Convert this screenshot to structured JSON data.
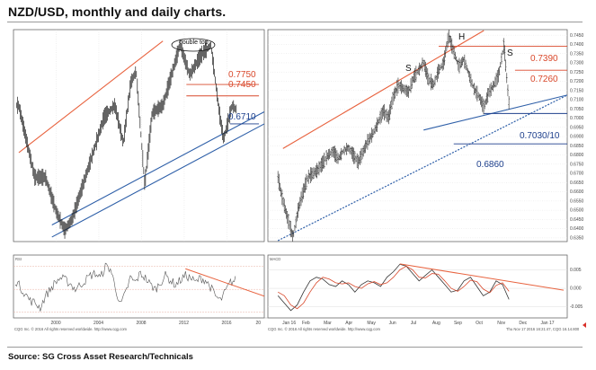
{
  "title": "NZD/USD, monthly and daily charts.",
  "source": "Source: SG Cross Asset Research/Technicals",
  "colors": {
    "resistance": "#e8633f",
    "support": "#2e5fa8",
    "price": "#222222",
    "level_red": "#d9482b",
    "level_blue": "#1d3f8c"
  },
  "chart_data": [
    {
      "type": "line",
      "panel": "monthly",
      "x_ticks": [
        "2000",
        "2004",
        "2008",
        "2012",
        "2016",
        "20"
      ],
      "annotations": {
        "pattern": "double top",
        "levels_red": [
          "0.7750",
          "0.7450"
        ],
        "levels_blue": [
          "0.6710"
        ]
      },
      "x": [
        1996.5,
        1998,
        1999,
        2000,
        2000.8,
        2001.5,
        2002.5,
        2003.5,
        2004.5,
        2005.5,
        2006.3,
        2007,
        2007.5,
        2008.3,
        2009,
        2010,
        2011,
        2011.6,
        2012.5,
        2013.5,
        2014.5,
        2015.3,
        2015.7,
        2016.5,
        2016.8
      ],
      "values": [
        0.72,
        0.53,
        0.53,
        0.44,
        0.39,
        0.42,
        0.51,
        0.6,
        0.69,
        0.72,
        0.62,
        0.78,
        0.81,
        0.51,
        0.7,
        0.72,
        0.82,
        0.88,
        0.8,
        0.85,
        0.88,
        0.7,
        0.63,
        0.72,
        0.71
      ],
      "ylim": [
        0.36,
        0.92
      ],
      "xlim": [
        1996,
        2019.5
      ],
      "footer": "CQG Inc. © 2016 All rights reserved worldwide. http://www.cqg.com"
    },
    {
      "type": "line",
      "panel": "daily",
      "x_ticks": [
        "Jan 16",
        "Feb",
        "Mar",
        "Apr",
        "May",
        "Jun",
        "Jul",
        "Aug",
        "Sep",
        "Oct",
        "Nov",
        "Dec",
        "Jan 17"
      ],
      "y_ticks": [
        0.745,
        0.74,
        0.735,
        0.73,
        0.725,
        0.72,
        0.715,
        0.71,
        0.705,
        0.7,
        0.695,
        0.69,
        0.685,
        0.68,
        0.675,
        0.67,
        0.665,
        0.66,
        0.655,
        0.65,
        0.645,
        0.64,
        0.635
      ],
      "annotations": {
        "pattern_labels": [
          "S",
          "H",
          "S"
        ],
        "levels_red": [
          "0.7390",
          "0.7260"
        ],
        "levels_blue": [
          "0.7030/10",
          "0.6860"
        ]
      },
      "x": [
        0,
        5,
        10,
        15,
        20,
        25,
        30,
        35,
        40,
        45,
        50,
        55,
        60,
        65,
        70,
        75,
        80,
        85,
        90,
        95,
        100,
        105,
        110,
        115,
        120,
        125,
        130,
        135,
        140,
        145,
        150,
        155,
        160,
        165,
        170,
        175,
        180,
        185,
        190,
        195,
        200,
        205,
        210,
        215,
        220,
        225,
        230
      ],
      "values": [
        0.668,
        0.655,
        0.645,
        0.635,
        0.65,
        0.66,
        0.668,
        0.67,
        0.672,
        0.676,
        0.68,
        0.682,
        0.678,
        0.682,
        0.684,
        0.68,
        0.676,
        0.682,
        0.688,
        0.692,
        0.698,
        0.704,
        0.7,
        0.712,
        0.718,
        0.716,
        0.714,
        0.722,
        0.726,
        0.73,
        0.721,
        0.718,
        0.726,
        0.73,
        0.745,
        0.736,
        0.728,
        0.732,
        0.724,
        0.716,
        0.712,
        0.706,
        0.714,
        0.718,
        0.724,
        0.74,
        0.708
      ],
      "ylim": [
        0.633,
        0.748
      ],
      "xlim": [
        -10,
        288
      ],
      "footer": "CQG Inc. © 2016 All rights reserved worldwide. http://www.cqg.com",
      "timestamp": "Thu Nov 17 2016 16:21:47, CQG 16.14.800"
    },
    {
      "type": "line",
      "panel": "monthly_rsi",
      "label": "RSI",
      "values": [
        58,
        52,
        46,
        40,
        38,
        34,
        44,
        50,
        56,
        60,
        58,
        55,
        50,
        54,
        58,
        62,
        64,
        60,
        70,
        68,
        52,
        36,
        46,
        60,
        56,
        64,
        60,
        54,
        50,
        56,
        62,
        58,
        54,
        58,
        62,
        60,
        56,
        60,
        58,
        52,
        44,
        40,
        48,
        56,
        58
      ],
      "ylim": [
        25,
        80
      ]
    },
    {
      "type": "line",
      "panel": "daily_macd",
      "label": "MACD",
      "y_ticks": [
        "0.005",
        "0.000",
        "-0.005"
      ],
      "series": [
        {
          "values": [
            -0.002,
            -0.004,
            -0.006,
            -0.0045,
            -0.001,
            0.002,
            0.003,
            0.0025,
            0.001,
            0.0005,
            0.002,
            0.001,
            -0.001,
            0.001,
            0.002,
            0.0015,
            0.0005,
            0.003,
            0.0045,
            0.0065,
            0.006,
            0.004,
            0.002,
            0.0035,
            0.005,
            0.003,
            0.001,
            -0.001,
            -0.0005,
            0.002,
            0.003,
            0.0005,
            -0.002,
            -0.001,
            0.002,
            0.001,
            -0.003
          ]
        },
        {
          "values": [
            -0.001,
            -0.002,
            -0.0045,
            -0.0055,
            -0.004,
            -0.001,
            0.0015,
            0.003,
            0.0025,
            0.0015,
            0.0012,
            0.0015,
            0.0005,
            0.0,
            0.0012,
            0.0018,
            0.001,
            0.0015,
            0.003,
            0.005,
            0.006,
            0.005,
            0.003,
            0.0028,
            0.004,
            0.0038,
            0.002,
            0.0,
            -0.0008,
            0.0005,
            0.0022,
            0.0018,
            -0.0002,
            -0.0012,
            0.0008,
            0.0015,
            -0.0008
          ]
        }
      ],
      "ylim": [
        -0.008,
        0.009
      ]
    }
  ]
}
